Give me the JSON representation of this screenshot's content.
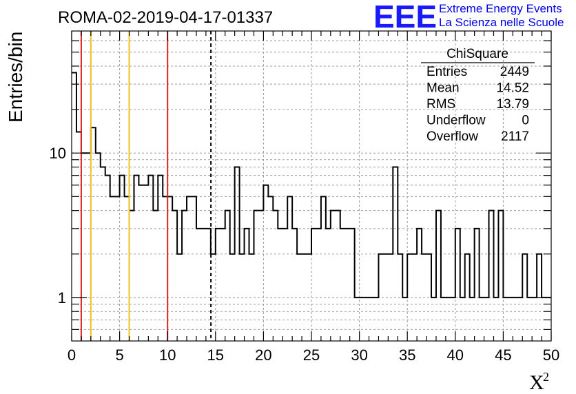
{
  "header": {
    "run_title": "ROMA-02-2019-04-17-01337",
    "logo_letters": "EEE",
    "logo_line1": "Extreme Energy Events",
    "logo_line2": "La Scienza nelle Scuole",
    "logo_color": "#1a1aff"
  },
  "stats_box": {
    "title": "ChiSquare",
    "rows": [
      {
        "label": "Entries",
        "value": "2449"
      },
      {
        "label": "Mean",
        "value": "14.52"
      },
      {
        "label": "RMS",
        "value": "13.79"
      },
      {
        "label": "Underflow",
        "value": "0"
      },
      {
        "label": "Overflow",
        "value": "2117"
      }
    ]
  },
  "chart_data": {
    "type": "histogram",
    "title": "ROMA-02-2019-04-17-01337",
    "xlabel": "X",
    "xlabel_superscript": "2",
    "ylabel": "Entries/bin",
    "x_range": [
      0,
      50
    ],
    "y_range": [
      0.5,
      70
    ],
    "y_scale": "log",
    "bin_width": 0.5,
    "grid": true,
    "x_ticks": [
      0,
      5,
      10,
      15,
      20,
      25,
      30,
      35,
      40,
      45,
      50
    ],
    "y_ticks": [
      {
        "value": 1,
        "label": "1"
      },
      {
        "value": 10,
        "label": "10"
      }
    ],
    "bin_contents": [
      36,
      14,
      10,
      10,
      15,
      10,
      8,
      7,
      5,
      5,
      7,
      5,
      4,
      7,
      6,
      6,
      7,
      4,
      7,
      5,
      5,
      4,
      2,
      4,
      5,
      5,
      3,
      3,
      3,
      2,
      3,
      3,
      4,
      2,
      8,
      2,
      3,
      2,
      4,
      4,
      6,
      5,
      4,
      3,
      3,
      5,
      3,
      2,
      2,
      2,
      3,
      3,
      5,
      3,
      4,
      4,
      3,
      3,
      3,
      1,
      1,
      1,
      1,
      1,
      2,
      2,
      2,
      8,
      2,
      1,
      2,
      2,
      3,
      2,
      2,
      1,
      4,
      1,
      1,
      1,
      3,
      1,
      2,
      1,
      3,
      1,
      1,
      4,
      1,
      4,
      1,
      1,
      1,
      1,
      2,
      1,
      1,
      2,
      1,
      1,
      1,
      1,
      1,
      1,
      1,
      1,
      1,
      1,
      1,
      1,
      3,
      1,
      1,
      1,
      1,
      2,
      2,
      1,
      1,
      1,
      1,
      1,
      1,
      1,
      1,
      1,
      2,
      1,
      1,
      1,
      1,
      1,
      1,
      1,
      1,
      1,
      1,
      1,
      1,
      1,
      1,
      1,
      1,
      1,
      1,
      1,
      1,
      1,
      1,
      1
    ],
    "reference_lines": [
      {
        "x": 1,
        "color": "#dd2222"
      },
      {
        "x": 2,
        "color": "#f0c020"
      },
      {
        "x": 6,
        "color": "#f0c020"
      },
      {
        "x": 10,
        "color": "#dd2222"
      },
      {
        "x": 14.52,
        "color": "#000000",
        "style": "dashed"
      }
    ],
    "line_color": "#000000"
  }
}
